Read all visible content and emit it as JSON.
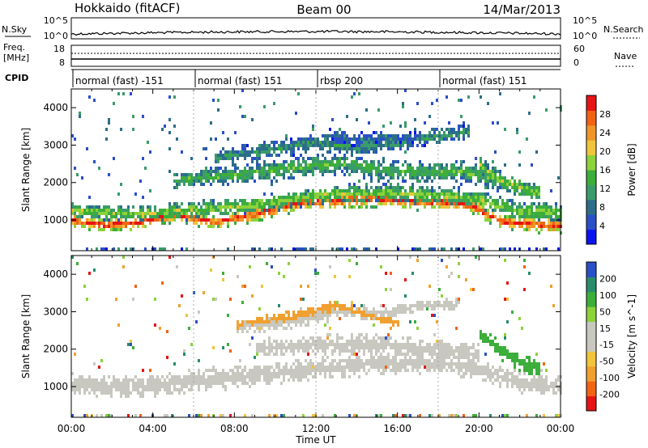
{
  "header": {
    "station": "Hokkaido (fitACF)",
    "beam": "Beam 00",
    "date": "14/Mar/2013"
  },
  "noise_panel": {
    "left_label": "N.Sky",
    "right_label": "N.Search",
    "left_ticks": [
      "10^5",
      "10^0"
    ],
    "right_ticks": [
      "10^5",
      "10^0"
    ]
  },
  "freq_panel": {
    "left_label_1": "Freq.",
    "left_label_2": "[MHz]",
    "right_label": "Nave",
    "left_ticks": [
      "18",
      "8"
    ],
    "right_ticks": [
      "60",
      "0"
    ]
  },
  "cpid": {
    "label": "CPID",
    "segments": [
      {
        "label": "normal (fast) -151",
        "start_hour": 0
      },
      {
        "label": "normal (fast) 151",
        "start_hour": 6
      },
      {
        "label": "rbsp 200",
        "start_hour": 12
      },
      {
        "label": "normal (fast) 151",
        "start_hour": 18
      }
    ]
  },
  "chart_data": [
    {
      "type": "heatmap",
      "name": "power-panel",
      "ylabel": "Slant Range [km]",
      "xlim": [
        0,
        24
      ],
      "ylim": [
        180,
        4500
      ],
      "yticks": [
        {
          "value": 1000,
          "label": "1000"
        },
        {
          "value": 2000,
          "label": "2000"
        },
        {
          "value": 3000,
          "label": "3000"
        },
        {
          "value": 4000,
          "label": "4000"
        }
      ],
      "colorbar": {
        "label": "Power [dB]",
        "colors": [
          "#0a14f0",
          "#2a50c8",
          "#2c6e8a",
          "#3a9c6a",
          "#3cae3a",
          "#8cd23a",
          "#f0c43c",
          "#f09628",
          "#f06414",
          "#e61414"
        ],
        "ticks": [
          "4",
          "8",
          "12",
          "16",
          "20",
          "24",
          "28"
        ]
      },
      "bands": [
        {
          "name": "E-region",
          "points": [
            [
              0,
              1050,
              250
            ],
            [
              1.5,
              900,
              200
            ],
            [
              3,
              960,
              220
            ],
            [
              5,
              1180,
              220
            ],
            [
              7,
              980,
              200
            ],
            [
              9,
              1200,
              220
            ],
            [
              11,
              1480,
              230
            ],
            [
              12,
              1520,
              240
            ],
            [
              15,
              1600,
              240
            ],
            [
              18,
              1520,
              250
            ],
            [
              19.5,
              1450,
              240
            ],
            [
              21,
              1000,
              200
            ],
            [
              23,
              900,
              220
            ],
            [
              24,
              880,
              220
            ]
          ],
          "level": 9
        },
        {
          "name": "E-fringe",
          "points": [
            [
              0,
              1300,
              220
            ],
            [
              3,
              1200,
              220
            ],
            [
              6,
              1300,
              250
            ],
            [
              9,
              1450,
              250
            ],
            [
              12,
              1700,
              260
            ],
            [
              15,
              1780,
              260
            ],
            [
              18,
              1700,
              260
            ],
            [
              20,
              1600,
              260
            ],
            [
              22,
              1260,
              260
            ],
            [
              24,
              1250,
              260
            ]
          ],
          "level": 5
        },
        {
          "name": "F-lower",
          "points": [
            [
              5,
              2100,
              250
            ],
            [
              8,
              2250,
              300
            ],
            [
              11,
              2450,
              320
            ],
            [
              13,
              2550,
              320
            ],
            [
              15,
              2400,
              320
            ],
            [
              17,
              2300,
              300
            ],
            [
              19,
              2350,
              300
            ],
            [
              21,
              2100,
              300
            ]
          ],
          "level": 4
        },
        {
          "name": "F-upper",
          "points": [
            [
              7,
              2700,
              220
            ],
            [
              10,
              2950,
              250
            ],
            [
              12,
              3100,
              260
            ],
            [
              14,
              3000,
              260
            ],
            [
              16,
              3100,
              240
            ],
            [
              18,
              3300,
              240
            ],
            [
              19.5,
              3400,
              200
            ]
          ],
          "level": 3
        },
        {
          "name": "F-arc",
          "points": [
            [
              12.5,
              3300,
              180
            ],
            [
              14,
              3200,
              200
            ],
            [
              15.5,
              3250,
              160
            ],
            [
              17,
              3200,
              140
            ]
          ],
          "level": 2
        },
        {
          "name": "late-echo",
          "points": [
            [
              20,
              2500,
              250
            ],
            [
              21,
              2100,
              260
            ],
            [
              22,
              1900,
              260
            ],
            [
              23,
              1750,
              260
            ]
          ],
          "level": 5
        }
      ]
    },
    {
      "type": "heatmap",
      "name": "velocity-panel",
      "ylabel": "Slant Range [km]",
      "xlabel": "Time UT",
      "xlim": [
        0,
        24
      ],
      "ylim": [
        180,
        4500
      ],
      "xticks": [
        {
          "value": 0,
          "label": "00:00"
        },
        {
          "value": 4,
          "label": "04:00"
        },
        {
          "value": 8,
          "label": "08:00"
        },
        {
          "value": 12,
          "label": "12:00"
        },
        {
          "value": 16,
          "label": "16:00"
        },
        {
          "value": 20,
          "label": "20:00"
        },
        {
          "value": 24,
          "label": "00:00"
        }
      ],
      "yticks": [
        {
          "value": 1000,
          "label": "1000"
        },
        {
          "value": 2000,
          "label": "2000"
        },
        {
          "value": 3000,
          "label": "3000"
        },
        {
          "value": 4000,
          "label": "4000"
        }
      ],
      "colorbar": {
        "label": "Velocity [m s^-1]",
        "colors": [
          "#e61414",
          "#f06414",
          "#f0a030",
          "#f0c43c",
          "#c8c8c0",
          "#c8c8c0",
          "#8cd23a",
          "#3cae3a",
          "#2a8c6a",
          "#2a50c8"
        ],
        "ticks": [
          "-200",
          "-100",
          "-50",
          "-15",
          "15",
          "50",
          "100",
          "200"
        ]
      },
      "bands": [
        {
          "name": "gray-lower",
          "points": [
            [
              0,
              1100,
              320
            ],
            [
              3,
              1000,
              300
            ],
            [
              6,
              1200,
              320
            ],
            [
              9,
              1350,
              320
            ],
            [
              12,
              1500,
              320
            ],
            [
              15,
              1650,
              320
            ],
            [
              18,
              1700,
              320
            ],
            [
              20,
              1500,
              320
            ],
            [
              22,
              1150,
              300
            ],
            [
              24,
              1050,
              300
            ]
          ],
          "color": "#c8c8c0"
        },
        {
          "name": "gray-mid",
          "points": [
            [
              9,
              2050,
              220
            ],
            [
              12,
              2150,
              280
            ],
            [
              15,
              2150,
              280
            ],
            [
              18,
              2050,
              250
            ],
            [
              20,
              1900,
              250
            ]
          ],
          "color": "#c8c8c0"
        },
        {
          "name": "gray-upper",
          "points": [
            [
              8,
              2600,
              200
            ],
            [
              11,
              2800,
              220
            ],
            [
              13,
              3050,
              220
            ],
            [
              15,
              3000,
              200
            ],
            [
              17,
              3200,
              160
            ],
            [
              19,
              3250,
              160
            ]
          ],
          "color": "#c8c8c0"
        },
        {
          "name": "orange-upper",
          "points": [
            [
              8,
              2700,
              120
            ],
            [
              11,
              2950,
              140
            ],
            [
              13,
              3200,
              140
            ],
            [
              16,
              2700,
              120
            ]
          ],
          "color": "#f0a030"
        },
        {
          "name": "green-late",
          "points": [
            [
              20,
              2500,
              200
            ],
            [
              21,
              2000,
              260
            ],
            [
              22,
              1700,
              260
            ],
            [
              23,
              1500,
              200
            ]
          ],
          "color": "#3cae3a"
        }
      ]
    }
  ]
}
